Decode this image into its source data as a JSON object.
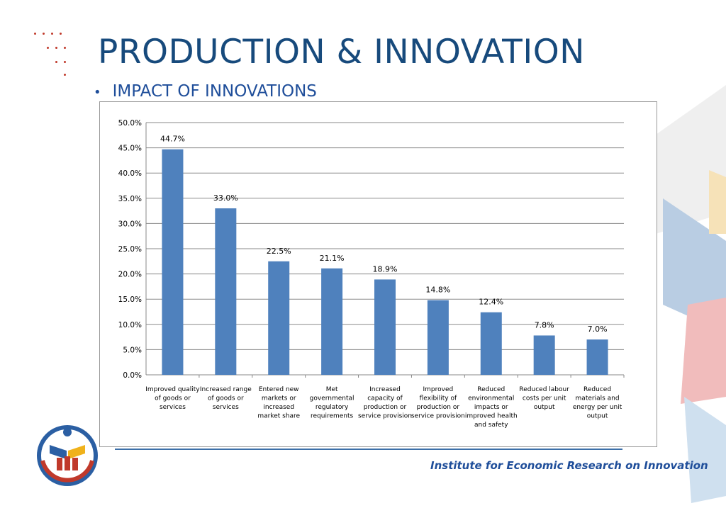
{
  "slide": {
    "title": "PRODUCTION & INNOVATION",
    "bullet": "IMPACT OF INNOVATIONS",
    "footer": "Institute for Economic Research on Innovation"
  },
  "colors": {
    "title": "#174a7c",
    "bar": "#4f81bd",
    "accent": "#c0392b"
  },
  "chart_data": {
    "type": "bar",
    "categories": [
      [
        "Improved quality",
        "of goods or",
        "services"
      ],
      [
        "Increased range",
        "of goods or",
        "services"
      ],
      [
        "Entered new",
        "markets or",
        "increased",
        "market share"
      ],
      [
        "Met",
        "governmental",
        "regulatory",
        "requirements"
      ],
      [
        "Increased",
        "capacity of",
        "production or",
        "service provision"
      ],
      [
        "Improved",
        "flexibility of",
        "production or",
        "service provision"
      ],
      [
        "Reduced",
        "environmental",
        "impacts or",
        "improved health",
        "and safety"
      ],
      [
        "Reduced labour",
        "costs per unit",
        "output"
      ],
      [
        "Reduced",
        "materials and",
        "energy per unit",
        "output"
      ]
    ],
    "values": [
      44.7,
      33.0,
      22.5,
      21.1,
      18.9,
      14.8,
      12.4,
      7.8,
      7.0
    ],
    "data_labels": [
      "44.7%",
      "33.0%",
      "22.5%",
      "21.1%",
      "18.9%",
      "14.8%",
      "12.4%",
      "7.8%",
      "7.0%"
    ],
    "y_ticks": [
      "0.0%",
      "5.0%",
      "10.0%",
      "15.0%",
      "20.0%",
      "25.0%",
      "30.0%",
      "35.0%",
      "40.0%",
      "45.0%",
      "50.0%"
    ],
    "ylim": [
      0,
      50
    ],
    "grid": true,
    "legend": "none"
  }
}
